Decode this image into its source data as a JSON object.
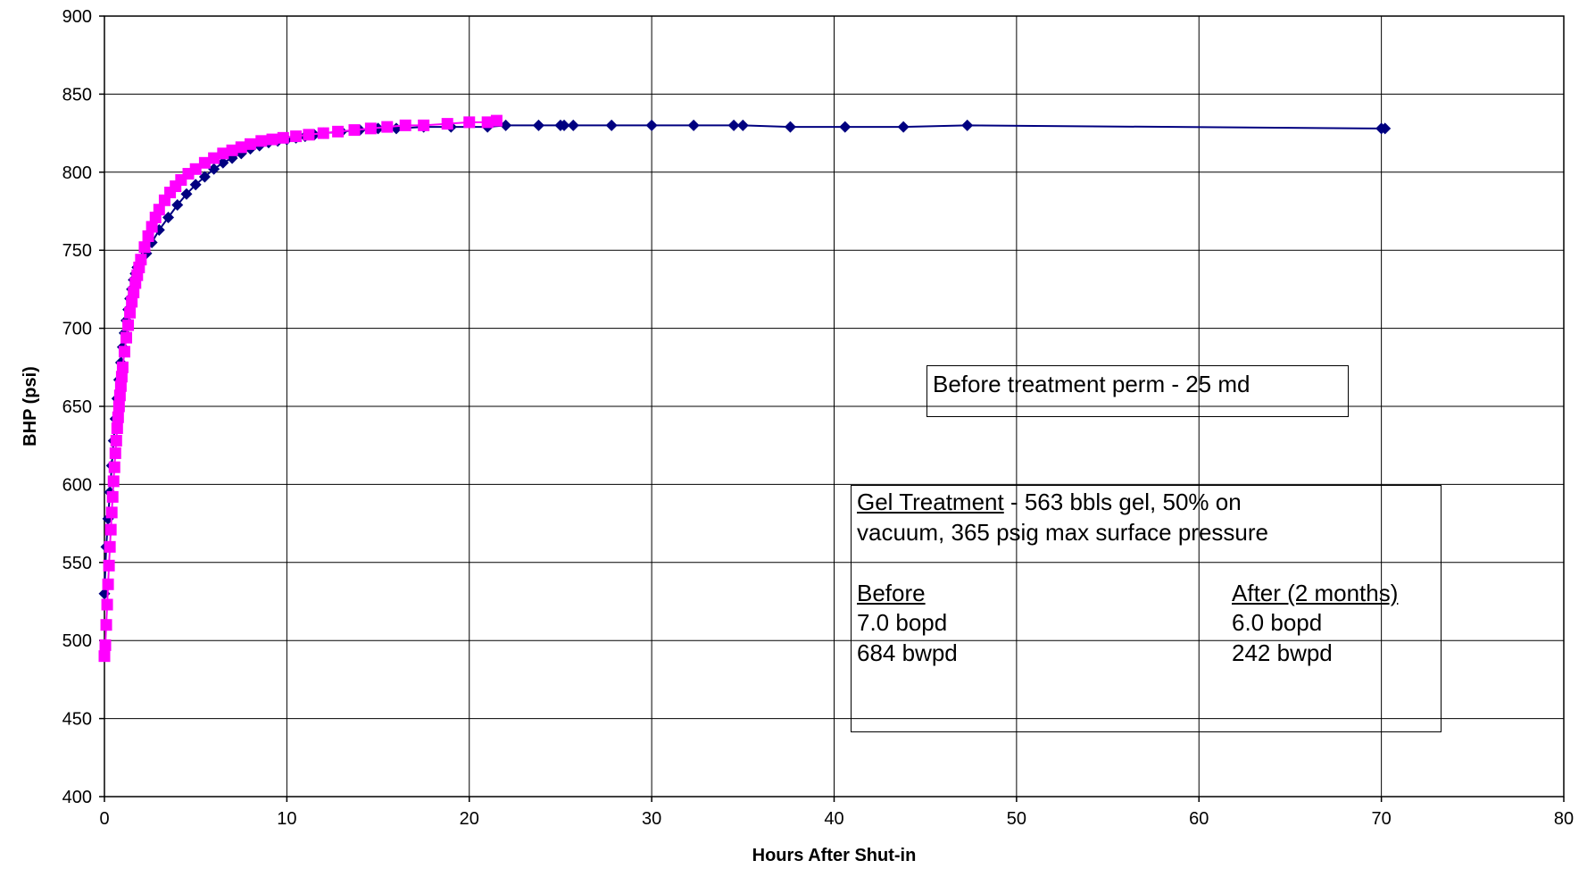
{
  "chart_data": {
    "type": "scatter",
    "title": "",
    "xlabel": "Hours After Shut-in",
    "ylabel": "BHP (psi)",
    "xlim": [
      0,
      80
    ],
    "ylim": [
      400,
      900
    ],
    "x_ticks": [
      "0",
      "10",
      "20",
      "30",
      "40",
      "50",
      "60",
      "70",
      "80"
    ],
    "y_ticks": [
      "400",
      "450",
      "500",
      "550",
      "600",
      "650",
      "700",
      "750",
      "800",
      "850",
      "900"
    ],
    "grid": true,
    "legend": "none",
    "colors": {
      "measured": "#000080",
      "model": "#ff00ff"
    },
    "series": [
      {
        "marker": "diamond",
        "line": true,
        "points": [
          [
            0.0,
            530
          ],
          [
            0.1,
            560
          ],
          [
            0.2,
            578
          ],
          [
            0.3,
            595
          ],
          [
            0.4,
            612
          ],
          [
            0.5,
            628
          ],
          [
            0.6,
            642
          ],
          [
            0.7,
            655
          ],
          [
            0.8,
            667
          ],
          [
            0.9,
            678
          ],
          [
            1.0,
            688
          ],
          [
            1.1,
            697
          ],
          [
            1.2,
            705
          ],
          [
            1.3,
            712
          ],
          [
            1.4,
            719
          ],
          [
            1.5,
            725
          ],
          [
            1.6,
            731
          ],
          [
            1.7,
            735
          ],
          [
            1.8,
            739
          ],
          [
            2.0,
            742
          ],
          [
            2.3,
            748
          ],
          [
            2.6,
            755
          ],
          [
            3.0,
            763
          ],
          [
            3.5,
            771
          ],
          [
            4.0,
            779
          ],
          [
            4.5,
            786
          ],
          [
            5.0,
            792
          ],
          [
            5.5,
            797
          ],
          [
            6.0,
            802
          ],
          [
            6.5,
            806
          ],
          [
            7.0,
            809
          ],
          [
            7.5,
            812
          ],
          [
            8.0,
            815
          ],
          [
            8.5,
            817
          ],
          [
            9.0,
            819
          ],
          [
            9.5,
            820
          ],
          [
            10.0,
            821
          ],
          [
            10.5,
            822
          ],
          [
            11.0,
            823
          ],
          [
            11.5,
            824
          ],
          [
            12.0,
            825
          ],
          [
            13.0,
            826
          ],
          [
            14.0,
            827
          ],
          [
            15.0,
            828
          ],
          [
            16.0,
            828
          ],
          [
            17.5,
            829
          ],
          [
            19.0,
            829
          ],
          [
            21.0,
            829
          ],
          [
            22.0,
            830
          ],
          [
            23.8,
            830
          ],
          [
            25.0,
            830
          ],
          [
            25.2,
            830
          ],
          [
            25.7,
            830
          ],
          [
            27.8,
            830
          ],
          [
            30.0,
            830
          ],
          [
            32.3,
            830
          ],
          [
            34.5,
            830
          ],
          [
            35.0,
            830
          ],
          [
            37.6,
            829
          ],
          [
            40.6,
            829
          ],
          [
            43.8,
            829
          ],
          [
            47.3,
            830
          ],
          [
            70.0,
            828
          ],
          [
            70.2,
            828
          ]
        ]
      },
      {
        "marker": "square",
        "line": true,
        "points": [
          [
            0.0,
            490
          ],
          [
            0.05,
            497
          ],
          [
            0.1,
            510
          ],
          [
            0.15,
            523
          ],
          [
            0.2,
            536
          ],
          [
            0.25,
            548
          ],
          [
            0.3,
            560
          ],
          [
            0.35,
            571
          ],
          [
            0.4,
            582
          ],
          [
            0.45,
            592
          ],
          [
            0.5,
            602
          ],
          [
            0.55,
            611
          ],
          [
            0.6,
            620
          ],
          [
            0.65,
            628
          ],
          [
            0.7,
            636
          ],
          [
            0.75,
            643
          ],
          [
            0.8,
            650
          ],
          [
            0.85,
            657
          ],
          [
            0.9,
            663
          ],
          [
            0.95,
            669
          ],
          [
            1.0,
            675
          ],
          [
            1.1,
            685
          ],
          [
            1.2,
            694
          ],
          [
            1.3,
            702
          ],
          [
            1.4,
            710
          ],
          [
            1.5,
            717
          ],
          [
            1.6,
            723
          ],
          [
            1.7,
            729
          ],
          [
            1.8,
            734
          ],
          [
            1.9,
            739
          ],
          [
            2.0,
            744
          ],
          [
            2.2,
            752
          ],
          [
            2.4,
            759
          ],
          [
            2.6,
            765
          ],
          [
            2.8,
            771
          ],
          [
            3.0,
            776
          ],
          [
            3.3,
            782
          ],
          [
            3.6,
            787
          ],
          [
            3.9,
            791
          ],
          [
            4.2,
            795
          ],
          [
            4.6,
            799
          ],
          [
            5.0,
            802
          ],
          [
            5.5,
            806
          ],
          [
            6.0,
            809
          ],
          [
            6.5,
            812
          ],
          [
            7.0,
            814
          ],
          [
            7.5,
            816
          ],
          [
            8.0,
            818
          ],
          [
            8.6,
            820
          ],
          [
            9.2,
            821
          ],
          [
            9.8,
            822
          ],
          [
            10.5,
            823
          ],
          [
            11.2,
            824
          ],
          [
            12.0,
            825
          ],
          [
            12.8,
            826
          ],
          [
            13.7,
            827
          ],
          [
            14.6,
            828
          ],
          [
            15.5,
            829
          ],
          [
            16.5,
            830
          ],
          [
            17.5,
            830
          ],
          [
            18.8,
            831
          ],
          [
            20.0,
            832
          ],
          [
            21.0,
            832
          ],
          [
            21.5,
            833
          ]
        ]
      }
    ],
    "annotations": {
      "perm": "Before treatment perm - 25 md",
      "gel_heading": "Gel Treatment",
      "gel_text_1": " - 563 bbls gel, 50% on",
      "gel_text_2": "vacuum, 365 psig max surface pressure",
      "before_heading": "Before",
      "after_heading": "After (2 months)",
      "before_oil": " 7.0 bopd",
      "before_water": "684 bwpd",
      "after_oil": " 6.0 bopd",
      "after_water": "242 bwpd"
    }
  }
}
